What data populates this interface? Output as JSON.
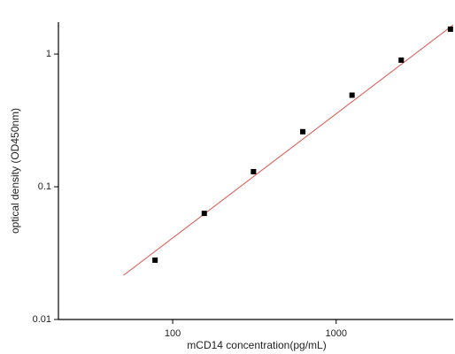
{
  "chart_data": {
    "type": "scatter",
    "x_label": "mCD14 concentration(pg/mL)",
    "y_label": "optical density (OD450nm)",
    "xscale": "log",
    "yscale": "log",
    "xlim": [
      20,
      5200
    ],
    "ylim": [
      0.01,
      1.74
    ],
    "xticks": [
      100,
      1000
    ],
    "yticks": [
      0.01,
      0.1,
      1
    ],
    "grid": false,
    "series": [
      {
        "color": "#000000",
        "x": [
          78,
          156,
          312,
          625,
          1250,
          2500,
          5000
        ],
        "values": [
          0.028,
          0.063,
          0.13,
          0.26,
          0.49,
          0.9,
          1.54
        ]
      }
    ],
    "fit": {
      "color": "#d9534f",
      "x": [
        50,
        5200
      ],
      "values": [
        0.0215,
        1.66
      ]
    }
  }
}
